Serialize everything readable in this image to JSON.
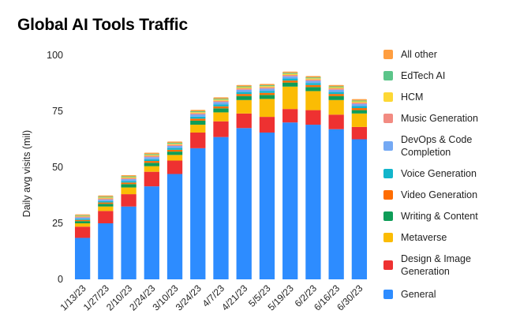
{
  "chart_data": {
    "type": "bar",
    "stacked": true,
    "title": "Global AI Tools Traffic",
    "xlabel": "",
    "ylabel": "Daily avg visits (mil)",
    "ylim": [
      0,
      100
    ],
    "yticks": [
      0,
      25,
      50,
      75,
      100
    ],
    "grid": false,
    "legend_position": "right",
    "categories": [
      "1/13/23",
      "1/27/23",
      "2/10/23",
      "2/24/23",
      "3/10/23",
      "3/24/23",
      "4/7/23",
      "4/21/23",
      "5/5/23",
      "5/19/23",
      "6/2/23",
      "6/16/23",
      "6/30/23"
    ],
    "series": [
      {
        "name": "General",
        "color": "#2d8cff",
        "values": [
          18.5,
          25,
          32.5,
          41.5,
          47,
          58.5,
          63.5,
          67.5,
          65.5,
          70,
          69,
          67,
          62.5
        ]
      },
      {
        "name": "Design & Image Generation",
        "color": "#ee3131",
        "values": [
          5,
          5.5,
          5.5,
          6.5,
          6,
          7,
          7,
          6.5,
          7,
          6,
          6.5,
          6.5,
          5.5
        ]
      },
      {
        "name": "Metaverse",
        "color": "#fbbc04",
        "values": [
          1.5,
          2,
          3,
          2.5,
          2.5,
          3.5,
          4,
          6,
          8,
          10,
          8.5,
          6.5,
          6
        ]
      },
      {
        "name": "Writing & Content",
        "color": "#0f9d58",
        "values": [
          1,
          1.2,
          1.5,
          1.5,
          1.5,
          1.8,
          1.8,
          1.8,
          1.8,
          1.8,
          1.8,
          1.8,
          1.5
        ]
      },
      {
        "name": "Video Generation",
        "color": "#ff6d01",
        "values": [
          0.5,
          0.6,
          0.7,
          0.8,
          0.8,
          0.9,
          0.9,
          0.9,
          0.9,
          0.9,
          0.9,
          0.9,
          0.9
        ]
      },
      {
        "name": "Voice Generation",
        "color": "#12b5cb",
        "values": [
          0.5,
          0.6,
          0.7,
          0.8,
          0.8,
          0.9,
          0.9,
          0.9,
          0.9,
          0.9,
          0.9,
          0.9,
          0.9
        ]
      },
      {
        "name": "DevOps & Code\nCompletion",
        "color": "#74a9f4",
        "values": [
          0.6,
          0.7,
          0.8,
          0.9,
          0.9,
          1,
          1,
          1,
          1,
          1,
          1,
          1,
          1
        ]
      },
      {
        "name": "Music Generation",
        "color": "#f28b82",
        "values": [
          0.4,
          0.5,
          0.5,
          0.6,
          0.6,
          0.6,
          0.6,
          0.6,
          0.6,
          0.6,
          0.6,
          0.6,
          0.6
        ]
      },
      {
        "name": "HCM",
        "color": "#fdd835",
        "values": [
          0.3,
          0.4,
          0.4,
          0.4,
          0.4,
          0.4,
          0.5,
          0.5,
          0.5,
          0.5,
          0.5,
          0.5,
          0.5
        ]
      },
      {
        "name": "EdTech AI",
        "color": "#5cc58a",
        "values": [
          0.3,
          0.4,
          0.4,
          0.4,
          0.4,
          0.4,
          0.4,
          0.4,
          0.4,
          0.4,
          0.4,
          0.4,
          0.4
        ]
      },
      {
        "name": "All other",
        "color": "#ff9e40",
        "values": [
          0.4,
          0.5,
          0.5,
          0.6,
          0.6,
          0.6,
          0.6,
          0.6,
          0.6,
          0.6,
          0.6,
          0.6,
          0.6
        ]
      }
    ]
  }
}
